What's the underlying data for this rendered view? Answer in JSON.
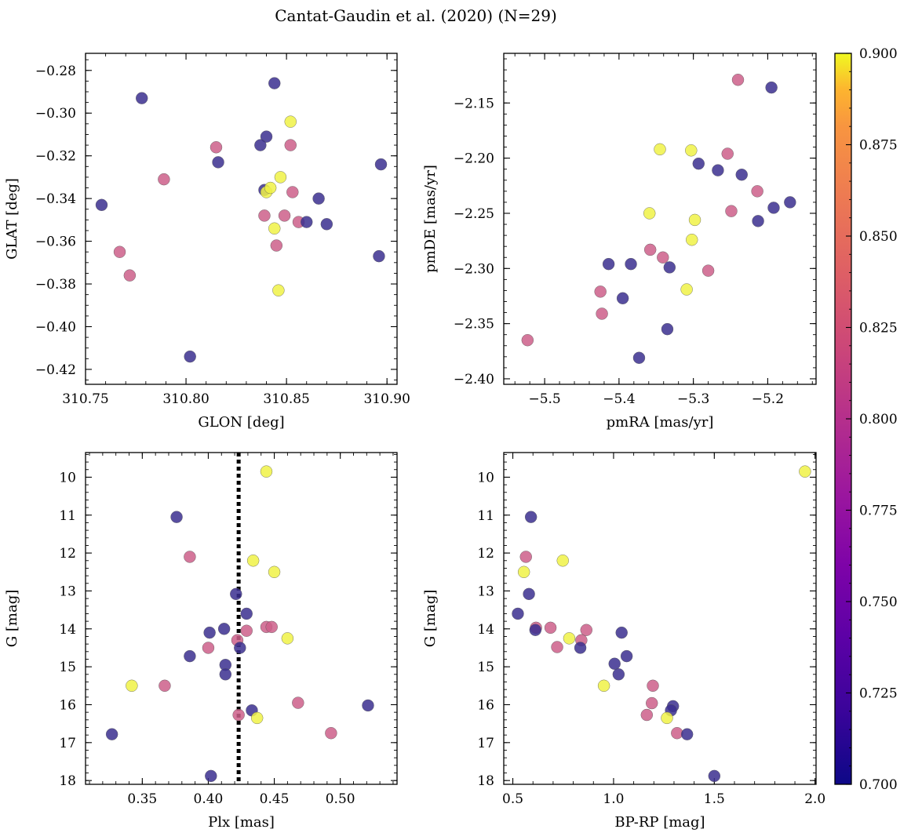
{
  "figure": {
    "title": "Cantat-Gaudin et al. (2020) (N=29)"
  },
  "colorbar": {
    "colormap": "plasma",
    "range": [
      0.7,
      0.9
    ],
    "ticks": [
      0.7,
      0.725,
      0.75,
      0.775,
      0.8,
      0.825,
      0.85,
      0.875,
      0.9
    ],
    "tick_labels": [
      "0.700",
      "0.725",
      "0.750",
      "0.775",
      "0.800",
      "0.825",
      "0.850",
      "0.875",
      "0.900"
    ],
    "colors": {
      "low": "#3b2f8f",
      "mid": "#cc5f8a",
      "high": "#f0f246"
    }
  },
  "chart_data": [
    {
      "type": "scatter",
      "xlabel": "GLON [deg]",
      "ylabel": "GLAT [deg]",
      "xlim": [
        310.75,
        310.905
      ],
      "ylim": [
        -0.427,
        -0.272
      ],
      "y_inverted": false,
      "xticks": [
        310.75,
        310.8,
        310.85,
        310.9
      ],
      "xtick_labels": [
        "310.75",
        "310.80",
        "310.85",
        "310.90"
      ],
      "yticks": [
        -0.28,
        -0.3,
        -0.32,
        -0.34,
        -0.36,
        -0.38,
        -0.4,
        -0.42
      ],
      "ytick_labels": [
        "−0.28",
        "−0.30",
        "−0.32",
        "−0.34",
        "−0.36",
        "−0.38",
        "−0.40",
        "−0.42"
      ],
      "minor_x_step": 0.01,
      "minor_y_step": 0.005,
      "points": [
        {
          "x": 310.778,
          "y": -0.293,
          "c": 0.7
        },
        {
          "x": 310.844,
          "y": -0.286,
          "c": 0.7
        },
        {
          "x": 310.852,
          "y": -0.304,
          "c": 0.9
        },
        {
          "x": 310.84,
          "y": -0.311,
          "c": 0.7
        },
        {
          "x": 310.837,
          "y": -0.315,
          "c": 0.7
        },
        {
          "x": 310.852,
          "y": -0.315,
          "c": 0.8
        },
        {
          "x": 310.815,
          "y": -0.316,
          "c": 0.8
        },
        {
          "x": 310.816,
          "y": -0.323,
          "c": 0.7
        },
        {
          "x": 310.897,
          "y": -0.324,
          "c": 0.7
        },
        {
          "x": 310.847,
          "y": -0.33,
          "c": 0.9
        },
        {
          "x": 310.789,
          "y": -0.331,
          "c": 0.8
        },
        {
          "x": 310.839,
          "y": -0.336,
          "c": 0.7
        },
        {
          "x": 310.84,
          "y": -0.337,
          "c": 0.9
        },
        {
          "x": 310.842,
          "y": -0.335,
          "c": 0.9
        },
        {
          "x": 310.853,
          "y": -0.337,
          "c": 0.8
        },
        {
          "x": 310.866,
          "y": -0.34,
          "c": 0.7
        },
        {
          "x": 310.758,
          "y": -0.343,
          "c": 0.7
        },
        {
          "x": 310.839,
          "y": -0.348,
          "c": 0.8
        },
        {
          "x": 310.849,
          "y": -0.348,
          "c": 0.8
        },
        {
          "x": 310.856,
          "y": -0.351,
          "c": 0.8
        },
        {
          "x": 310.86,
          "y": -0.351,
          "c": 0.7
        },
        {
          "x": 310.87,
          "y": -0.352,
          "c": 0.7
        },
        {
          "x": 310.844,
          "y": -0.354,
          "c": 0.9
        },
        {
          "x": 310.845,
          "y": -0.362,
          "c": 0.8
        },
        {
          "x": 310.767,
          "y": -0.365,
          "c": 0.8
        },
        {
          "x": 310.896,
          "y": -0.367,
          "c": 0.7
        },
        {
          "x": 310.772,
          "y": -0.376,
          "c": 0.8
        },
        {
          "x": 310.846,
          "y": -0.383,
          "c": 0.9
        },
        {
          "x": 310.802,
          "y": -0.414,
          "c": 0.7
        }
      ]
    },
    {
      "type": "scatter",
      "xlabel": "pmRA [mas/yr]",
      "ylabel": "pmDE [mas/yr]",
      "xlim": [
        -5.555,
        -5.135
      ],
      "ylim": [
        -2.405,
        -2.105
      ],
      "y_inverted": false,
      "xticks": [
        -5.5,
        -5.4,
        -5.3,
        -5.2
      ],
      "xtick_labels": [
        "−5.5",
        "−5.4",
        "−5.3",
        "−5.2"
      ],
      "yticks": [
        -2.15,
        -2.2,
        -2.25,
        -2.3,
        -2.35,
        -2.4
      ],
      "ytick_labels": [
        "−2.15",
        "−2.20",
        "−2.25",
        "−2.30",
        "−2.35",
        "−2.40"
      ],
      "minor_x_step": 0.02,
      "minor_y_step": 0.01,
      "points": [
        {
          "x": -5.24,
          "y": -2.129,
          "c": 0.8
        },
        {
          "x": -5.195,
          "y": -2.136,
          "c": 0.7
        },
        {
          "x": -5.345,
          "y": -2.192,
          "c": 0.9
        },
        {
          "x": -5.303,
          "y": -2.193,
          "c": 0.9
        },
        {
          "x": -5.254,
          "y": -2.196,
          "c": 0.8
        },
        {
          "x": -5.293,
          "y": -2.205,
          "c": 0.7
        },
        {
          "x": -5.267,
          "y": -2.211,
          "c": 0.7
        },
        {
          "x": -5.235,
          "y": -2.215,
          "c": 0.7
        },
        {
          "x": -5.214,
          "y": -2.23,
          "c": 0.8
        },
        {
          "x": -5.192,
          "y": -2.245,
          "c": 0.7
        },
        {
          "x": -5.17,
          "y": -2.24,
          "c": 0.7
        },
        {
          "x": -5.249,
          "y": -2.248,
          "c": 0.8
        },
        {
          "x": -5.359,
          "y": -2.25,
          "c": 0.9
        },
        {
          "x": -5.213,
          "y": -2.257,
          "c": 0.7
        },
        {
          "x": -5.298,
          "y": -2.256,
          "c": 0.9
        },
        {
          "x": -5.302,
          "y": -2.274,
          "c": 0.9
        },
        {
          "x": -5.358,
          "y": -2.283,
          "c": 0.8
        },
        {
          "x": -5.341,
          "y": -2.29,
          "c": 0.8
        },
        {
          "x": -5.414,
          "y": -2.296,
          "c": 0.7
        },
        {
          "x": -5.384,
          "y": -2.296,
          "c": 0.7
        },
        {
          "x": -5.332,
          "y": -2.299,
          "c": 0.7
        },
        {
          "x": -5.28,
          "y": -2.302,
          "c": 0.8
        },
        {
          "x": -5.309,
          "y": -2.319,
          "c": 0.9
        },
        {
          "x": -5.425,
          "y": -2.321,
          "c": 0.8
        },
        {
          "x": -5.395,
          "y": -2.327,
          "c": 0.7
        },
        {
          "x": -5.423,
          "y": -2.341,
          "c": 0.8
        },
        {
          "x": -5.335,
          "y": -2.355,
          "c": 0.7
        },
        {
          "x": -5.523,
          "y": -2.365,
          "c": 0.8
        },
        {
          "x": -5.373,
          "y": -2.381,
          "c": 0.7
        }
      ]
    },
    {
      "type": "scatter",
      "xlabel": "Plx [mas]",
      "ylabel": "G [mag]",
      "xlim": [
        0.307,
        0.543
      ],
      "ylim": [
        9.35,
        18.1
      ],
      "y_inverted": true,
      "xticks": [
        0.35,
        0.4,
        0.45,
        0.5
      ],
      "xtick_labels": [
        "0.35",
        "0.40",
        "0.45",
        "0.50"
      ],
      "yticks": [
        10,
        11,
        12,
        13,
        14,
        15,
        16,
        17,
        18
      ],
      "ytick_labels": [
        "10",
        "11",
        "12",
        "13",
        "14",
        "15",
        "16",
        "17",
        "18"
      ],
      "minor_x_step": 0.01,
      "minor_y_step": 0.2,
      "vline": {
        "x": 0.423,
        "style": "dotted"
      },
      "points": [
        {
          "x": 0.444,
          "y": 9.85,
          "c": 0.9
        },
        {
          "x": 0.376,
          "y": 11.05,
          "c": 0.7
        },
        {
          "x": 0.386,
          "y": 12.1,
          "c": 0.8
        },
        {
          "x": 0.434,
          "y": 12.2,
          "c": 0.9
        },
        {
          "x": 0.45,
          "y": 12.5,
          "c": 0.9
        },
        {
          "x": 0.421,
          "y": 13.08,
          "c": 0.7
        },
        {
          "x": 0.429,
          "y": 13.6,
          "c": 0.7
        },
        {
          "x": 0.444,
          "y": 13.95,
          "c": 0.8
        },
        {
          "x": 0.448,
          "y": 13.95,
          "c": 0.8
        },
        {
          "x": 0.412,
          "y": 14.0,
          "c": 0.7
        },
        {
          "x": 0.429,
          "y": 14.05,
          "c": 0.8
        },
        {
          "x": 0.401,
          "y": 14.1,
          "c": 0.7
        },
        {
          "x": 0.46,
          "y": 14.25,
          "c": 0.9
        },
        {
          "x": 0.422,
          "y": 14.3,
          "c": 0.8
        },
        {
          "x": 0.4,
          "y": 14.5,
          "c": 0.8
        },
        {
          "x": 0.424,
          "y": 14.5,
          "c": 0.7
        },
        {
          "x": 0.386,
          "y": 14.72,
          "c": 0.7
        },
        {
          "x": 0.413,
          "y": 14.95,
          "c": 0.7
        },
        {
          "x": 0.413,
          "y": 15.2,
          "c": 0.7
        },
        {
          "x": 0.342,
          "y": 15.5,
          "c": 0.9
        },
        {
          "x": 0.367,
          "y": 15.5,
          "c": 0.8
        },
        {
          "x": 0.468,
          "y": 15.95,
          "c": 0.8
        },
        {
          "x": 0.521,
          "y": 16.02,
          "c": 0.7
        },
        {
          "x": 0.433,
          "y": 16.15,
          "c": 0.7
        },
        {
          "x": 0.423,
          "y": 16.27,
          "c": 0.8
        },
        {
          "x": 0.437,
          "y": 16.35,
          "c": 0.9
        },
        {
          "x": 0.327,
          "y": 16.78,
          "c": 0.7
        },
        {
          "x": 0.493,
          "y": 16.75,
          "c": 0.8
        },
        {
          "x": 0.402,
          "y": 17.88,
          "c": 0.7
        }
      ]
    },
    {
      "type": "scatter",
      "xlabel": "BP-RP [mag]",
      "ylabel": "G [mag]",
      "xlim": [
        0.455,
        2.005
      ],
      "ylim": [
        9.35,
        18.1
      ],
      "y_inverted": true,
      "xticks": [
        0.5,
        1.0,
        1.5,
        2.0
      ],
      "xtick_labels": [
        "0.5",
        "1.0",
        "1.5",
        "2.0"
      ],
      "yticks": [
        10,
        11,
        12,
        13,
        14,
        15,
        16,
        17,
        18
      ],
      "ytick_labels": [
        "10",
        "11",
        "12",
        "13",
        "14",
        "15",
        "16",
        "17",
        "18"
      ],
      "minor_x_step": 0.1,
      "minor_y_step": 0.2,
      "points": [
        {
          "x": 1.95,
          "y": 9.85,
          "c": 0.9
        },
        {
          "x": 0.59,
          "y": 11.05,
          "c": 0.7
        },
        {
          "x": 0.565,
          "y": 12.1,
          "c": 0.8
        },
        {
          "x": 0.555,
          "y": 12.5,
          "c": 0.9
        },
        {
          "x": 0.748,
          "y": 12.2,
          "c": 0.9
        },
        {
          "x": 0.58,
          "y": 13.08,
          "c": 0.7
        },
        {
          "x": 0.525,
          "y": 13.6,
          "c": 0.7
        },
        {
          "x": 0.615,
          "y": 13.97,
          "c": 0.8
        },
        {
          "x": 0.612,
          "y": 14.03,
          "c": 0.7
        },
        {
          "x": 0.687,
          "y": 13.97,
          "c": 0.8
        },
        {
          "x": 0.865,
          "y": 14.03,
          "c": 0.8
        },
        {
          "x": 1.04,
          "y": 14.1,
          "c": 0.7
        },
        {
          "x": 0.78,
          "y": 14.25,
          "c": 0.9
        },
        {
          "x": 0.84,
          "y": 14.3,
          "c": 0.8
        },
        {
          "x": 0.72,
          "y": 14.48,
          "c": 0.8
        },
        {
          "x": 0.835,
          "y": 14.5,
          "c": 0.7
        },
        {
          "x": 1.065,
          "y": 14.72,
          "c": 0.7
        },
        {
          "x": 1.005,
          "y": 14.92,
          "c": 0.7
        },
        {
          "x": 1.025,
          "y": 15.2,
          "c": 0.7
        },
        {
          "x": 0.952,
          "y": 15.5,
          "c": 0.9
        },
        {
          "x": 1.195,
          "y": 15.5,
          "c": 0.8
        },
        {
          "x": 1.19,
          "y": 15.96,
          "c": 0.8
        },
        {
          "x": 1.295,
          "y": 16.04,
          "c": 0.7
        },
        {
          "x": 1.285,
          "y": 16.15,
          "c": 0.7
        },
        {
          "x": 1.165,
          "y": 16.27,
          "c": 0.8
        },
        {
          "x": 1.265,
          "y": 16.35,
          "c": 0.9
        },
        {
          "x": 1.315,
          "y": 16.75,
          "c": 0.8
        },
        {
          "x": 1.365,
          "y": 16.78,
          "c": 0.7
        },
        {
          "x": 1.5,
          "y": 17.88,
          "c": 0.7
        }
      ]
    }
  ]
}
